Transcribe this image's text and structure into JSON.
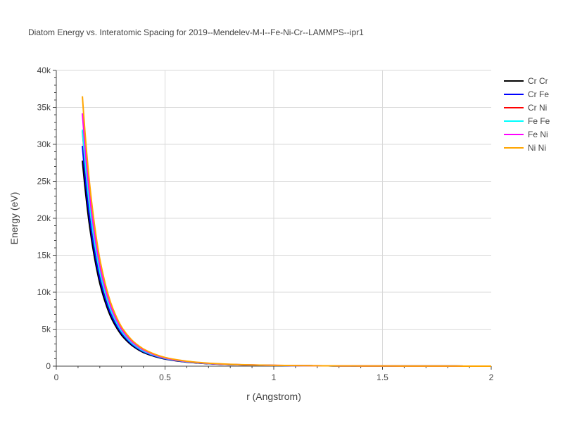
{
  "chart_data": {
    "type": "line",
    "title": "Diatom Energy vs. Interatomic Spacing for 2019--Mendelev-M-I--Fe-Ni-Cr--LAMMPS--ipr1",
    "xlabel": "r (Angstrom)",
    "ylabel": "Energy (eV)",
    "xlim": [
      0,
      2
    ],
    "ylim": [
      0,
      40000
    ],
    "x_ticks": [
      0,
      0.5,
      1,
      1.5,
      2
    ],
    "x_tick_labels": [
      "0",
      "0.5",
      "1",
      "1.5",
      "2"
    ],
    "y_ticks": [
      0,
      5000,
      10000,
      15000,
      20000,
      25000,
      30000,
      35000,
      40000
    ],
    "y_tick_labels": [
      "0",
      "5k",
      "10k",
      "15k",
      "20k",
      "25k",
      "30k",
      "35k",
      "40k"
    ],
    "grid": true,
    "legend_position": "top-right",
    "series": [
      {
        "name": "Cr Cr",
        "color": "#000000",
        "x": [
          0.12,
          0.15,
          0.2,
          0.25,
          0.3,
          0.35,
          0.4,
          0.5,
          0.6,
          0.7,
          0.8,
          1.0,
          1.2,
          1.5,
          2.0
        ],
        "y": [
          27800,
          19600,
          11200,
          6700,
          4200,
          2750,
          1850,
          960,
          550,
          330,
          210,
          100,
          50,
          20,
          0
        ]
      },
      {
        "name": "Cr Fe",
        "color": "#0000ff",
        "x": [
          0.12,
          0.15,
          0.2,
          0.25,
          0.3,
          0.35,
          0.4,
          0.5,
          0.6,
          0.7,
          0.8,
          1.0,
          1.2,
          1.5,
          2.0
        ],
        "y": [
          29800,
          20800,
          11900,
          7100,
          4450,
          2900,
          1950,
          1000,
          570,
          340,
          215,
          100,
          50,
          20,
          0
        ]
      },
      {
        "name": "Cr Ni",
        "color": "#ff0000",
        "x": [
          0.12,
          0.15,
          0.2,
          0.25,
          0.3,
          0.35,
          0.4,
          0.5,
          0.6,
          0.7,
          0.8,
          1.0,
          1.2,
          1.5,
          2.0
        ],
        "y": [
          31800,
          22300,
          12700,
          7550,
          4700,
          3050,
          2050,
          1050,
          600,
          360,
          225,
          105,
          50,
          20,
          0
        ]
      },
      {
        "name": "Fe Fe",
        "color": "#00ffff",
        "x": [
          0.12,
          0.15,
          0.2,
          0.25,
          0.3,
          0.35,
          0.4,
          0.5,
          0.6,
          0.7,
          0.8,
          1.0,
          1.2,
          1.5,
          2.0
        ],
        "y": [
          32000,
          22400,
          12750,
          7600,
          4700,
          3050,
          2050,
          1050,
          600,
          360,
          225,
          105,
          50,
          20,
          0
        ]
      },
      {
        "name": "Fe Ni",
        "color": "#ff00ff",
        "x": [
          0.12,
          0.15,
          0.2,
          0.25,
          0.3,
          0.35,
          0.4,
          0.5,
          0.6,
          0.7,
          0.8,
          1.0,
          1.2,
          1.5,
          2.0
        ],
        "y": [
          34200,
          24000,
          13600,
          8100,
          5000,
          3250,
          2200,
          1100,
          630,
          380,
          235,
          110,
          55,
          20,
          0
        ]
      },
      {
        "name": "Ni Ni",
        "color": "#ffa500",
        "x": [
          0.12,
          0.15,
          0.2,
          0.25,
          0.3,
          0.35,
          0.4,
          0.5,
          0.6,
          0.7,
          0.8,
          1.0,
          1.2,
          1.5,
          2.0
        ],
        "y": [
          36500,
          25600,
          14500,
          8600,
          5300,
          3450,
          2330,
          1170,
          670,
          400,
          250,
          115,
          55,
          20,
          0
        ]
      }
    ]
  }
}
